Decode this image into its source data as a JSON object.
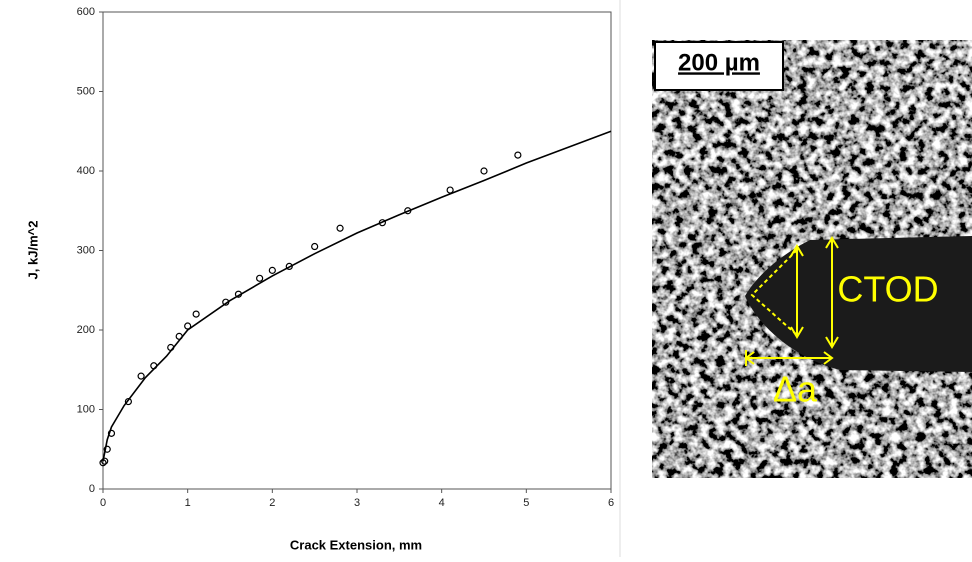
{
  "chart_data": {
    "type": "scatter",
    "xlabel": "Crack Extension, mm",
    "ylabel": "J, kJ/m^2",
    "xlim": [
      0,
      6
    ],
    "ylim": [
      0,
      600
    ],
    "xticks": [
      0,
      1,
      2,
      3,
      4,
      5,
      6
    ],
    "yticks": [
      0,
      100,
      200,
      300,
      400,
      500,
      600
    ],
    "series": [
      {
        "mode": "markers",
        "color": "#000000",
        "x": [
          0,
          0.02,
          0.05,
          0.1,
          0.3,
          0.45,
          0.6,
          0.8,
          0.9,
          1.0,
          1.1,
          1.45,
          1.6,
          1.85,
          2.0,
          2.2,
          2.5,
          2.8,
          3.3,
          3.6,
          4.1,
          4.5,
          4.9
        ],
        "values": [
          33,
          35,
          50,
          70,
          110,
          142,
          155,
          178,
          192,
          205,
          220,
          235,
          245,
          265,
          275,
          280,
          305,
          328,
          335,
          350,
          376,
          400,
          420
        ]
      },
      {
        "mode": "line",
        "color": "#000000",
        "x": [
          0,
          0.05,
          0.1,
          0.25,
          0.5,
          0.75,
          1,
          1.5,
          2,
          2.5,
          3,
          3.5,
          4,
          4.5,
          5,
          5.5,
          6
        ],
        "values": [
          35,
          62,
          78,
          105,
          140,
          167,
          200,
          237,
          268,
          296,
          322,
          345,
          367,
          388,
          410,
          430,
          450
        ]
      }
    ]
  },
  "image": {
    "scale_bar": "200 µm",
    "labels": [
      "CTOD",
      "Δa"
    ]
  }
}
